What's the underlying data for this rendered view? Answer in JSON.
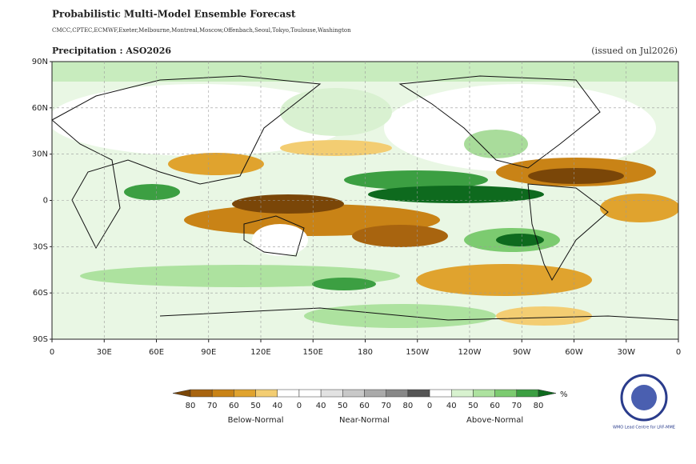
{
  "header": {
    "title": "Probabilistic Multi-Model Ensemble Forecast",
    "centres": "CMCC,CPTEC,ECMWF,Exeter,Melbourne,Montreal,Moscow,Offenbach,Seoul,Tokyo,Toulouse,Washington",
    "variable": "Precipitation : ASO2026",
    "issued": "(issued on Jul2026)"
  },
  "map": {
    "lat_labels": [
      "90N",
      "60N",
      "30N",
      "0",
      "30S",
      "60S",
      "90S"
    ],
    "lon_labels": [
      "0",
      "30E",
      "60E",
      "90E",
      "120E",
      "150E",
      "180",
      "150W",
      "120W",
      "90W",
      "60W",
      "30W",
      "0"
    ]
  },
  "legend": {
    "labels": [
      "80",
      "70",
      "60",
      "50",
      "40",
      "0",
      "40",
      "50",
      "60",
      "70",
      "80",
      "0",
      "40",
      "50",
      "60",
      "70",
      "80"
    ],
    "colors": [
      "#7a4608",
      "#a8640f",
      "#c98316",
      "#e0a32e",
      "#f3cd72",
      "#ffffff",
      "#ffffff",
      "#e2e2e2",
      "#c8c8c8",
      "#aaaaaa",
      "#888888",
      "#555555",
      "#ffffff",
      "#d8f2cf",
      "#ade29f",
      "#7ccb70",
      "#3c9f42",
      "#0e6a1e"
    ],
    "unit": "%",
    "groups": [
      "Below-Normal",
      "Near-Normal",
      "Above-Normal"
    ]
  },
  "logo": {
    "text": "WMO Lead Centre for LRF-MME"
  }
}
